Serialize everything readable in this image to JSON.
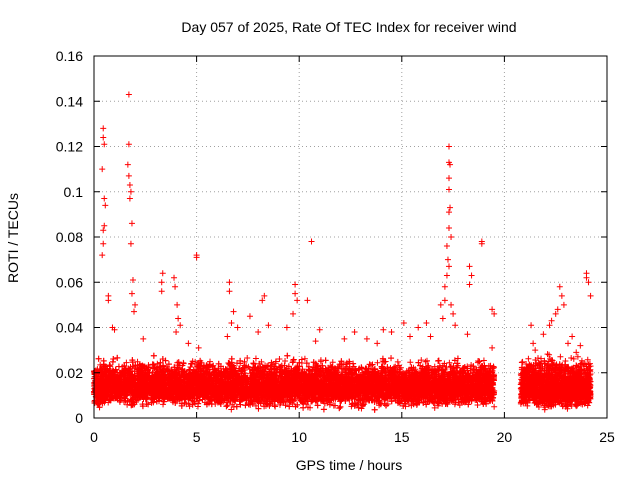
{
  "chart_data": {
    "type": "scatter",
    "title": "Day 057 of 2025, Rate Of TEC Index for receiver wind",
    "xlabel": "GPS time / hours",
    "ylabel": "ROTI / TECUs",
    "xlim": [
      0,
      25
    ],
    "ylim": [
      0,
      0.16
    ],
    "xticks": [
      "0",
      "5",
      "10",
      "15",
      "20",
      "25"
    ],
    "yticks": [
      "0",
      "0.02",
      "0.04",
      "0.06",
      "0.08",
      "0.1",
      "0.12",
      "0.14",
      "0.16"
    ],
    "grid": true,
    "marker": "plus",
    "color": "#ff0000",
    "series": [
      {
        "name": "ROTI",
        "points": [
          [
            0.45,
            0.128
          ],
          [
            0.45,
            0.124
          ],
          [
            0.5,
            0.121
          ],
          [
            0.4,
            0.11
          ],
          [
            0.5,
            0.097
          ],
          [
            0.55,
            0.094
          ],
          [
            0.5,
            0.085
          ],
          [
            0.45,
            0.083
          ],
          [
            0.45,
            0.077
          ],
          [
            0.4,
            0.072
          ],
          [
            0.7,
            0.054
          ],
          [
            0.7,
            0.052
          ],
          [
            0.9,
            0.04
          ],
          [
            1.0,
            0.039
          ],
          [
            1.7,
            0.143
          ],
          [
            1.7,
            0.121
          ],
          [
            1.65,
            0.112
          ],
          [
            1.7,
            0.107
          ],
          [
            1.75,
            0.103
          ],
          [
            1.8,
            0.1
          ],
          [
            1.75,
            0.097
          ],
          [
            1.85,
            0.086
          ],
          [
            1.8,
            0.077
          ],
          [
            1.9,
            0.061
          ],
          [
            1.85,
            0.055
          ],
          [
            2.0,
            0.05
          ],
          [
            1.95,
            0.047
          ],
          [
            2.4,
            0.035
          ],
          [
            3.35,
            0.064
          ],
          [
            3.3,
            0.06
          ],
          [
            3.3,
            0.056
          ],
          [
            3.9,
            0.062
          ],
          [
            3.95,
            0.058
          ],
          [
            4.05,
            0.05
          ],
          [
            4.1,
            0.044
          ],
          [
            4.2,
            0.041
          ],
          [
            4.0,
            0.038
          ],
          [
            4.6,
            0.033
          ],
          [
            5.0,
            0.072
          ],
          [
            5.0,
            0.071
          ],
          [
            5.1,
            0.031
          ],
          [
            6.6,
            0.06
          ],
          [
            6.6,
            0.056
          ],
          [
            6.8,
            0.047
          ],
          [
            6.7,
            0.042
          ],
          [
            7.0,
            0.04
          ],
          [
            6.5,
            0.036
          ],
          [
            7.6,
            0.045
          ],
          [
            8.3,
            0.054
          ],
          [
            8.2,
            0.052
          ],
          [
            8.5,
            0.041
          ],
          [
            8.0,
            0.038
          ],
          [
            9.8,
            0.059
          ],
          [
            9.8,
            0.055
          ],
          [
            9.9,
            0.052
          ],
          [
            9.7,
            0.046
          ],
          [
            9.4,
            0.04
          ],
          [
            10.4,
            0.052
          ],
          [
            10.6,
            0.078
          ],
          [
            11.0,
            0.039
          ],
          [
            10.8,
            0.034
          ],
          [
            12.2,
            0.035
          ],
          [
            12.7,
            0.038
          ],
          [
            13.3,
            0.035
          ],
          [
            13.8,
            0.033
          ],
          [
            14.1,
            0.039
          ],
          [
            14.5,
            0.038
          ],
          [
            15.1,
            0.042
          ],
          [
            15.4,
            0.036
          ],
          [
            15.8,
            0.04
          ],
          [
            16.2,
            0.042
          ],
          [
            16.4,
            0.036
          ],
          [
            16.9,
            0.05
          ],
          [
            17.0,
            0.044
          ],
          [
            17.1,
            0.052
          ],
          [
            17.3,
            0.12
          ],
          [
            17.3,
            0.113
          ],
          [
            17.35,
            0.112
          ],
          [
            17.3,
            0.106
          ],
          [
            17.3,
            0.101
          ],
          [
            17.35,
            0.093
          ],
          [
            17.3,
            0.091
          ],
          [
            17.3,
            0.084
          ],
          [
            17.4,
            0.08
          ],
          [
            17.2,
            0.076
          ],
          [
            17.25,
            0.07
          ],
          [
            17.3,
            0.067
          ],
          [
            17.2,
            0.063
          ],
          [
            17.1,
            0.058
          ],
          [
            17.4,
            0.05
          ],
          [
            17.5,
            0.046
          ],
          [
            17.6,
            0.041
          ],
          [
            18.3,
            0.067
          ],
          [
            18.4,
            0.063
          ],
          [
            18.3,
            0.059
          ],
          [
            18.2,
            0.037
          ],
          [
            18.9,
            0.078
          ],
          [
            18.9,
            0.077
          ],
          [
            19.4,
            0.048
          ],
          [
            19.5,
            0.046
          ],
          [
            19.4,
            0.031
          ],
          [
            19.4,
            0.022
          ],
          [
            19.5,
            0.012
          ],
          [
            19.4,
            0.008
          ],
          [
            19.5,
            0.005
          ],
          [
            19.3,
            0.017
          ],
          [
            21.3,
            0.041
          ],
          [
            21.4,
            0.033
          ],
          [
            21.5,
            0.03
          ],
          [
            21.9,
            0.037
          ],
          [
            22.2,
            0.041
          ],
          [
            22.3,
            0.043
          ],
          [
            22.5,
            0.046
          ],
          [
            22.7,
            0.058
          ],
          [
            22.8,
            0.054
          ],
          [
            22.9,
            0.05
          ],
          [
            22.6,
            0.048
          ],
          [
            23.3,
            0.036
          ],
          [
            23.1,
            0.033
          ],
          [
            23.7,
            0.032
          ],
          [
            23.5,
            0.029
          ],
          [
            24.0,
            0.064
          ],
          [
            24.0,
            0.062
          ],
          [
            24.1,
            0.06
          ],
          [
            24.2,
            0.054
          ]
        ],
        "bands": [
          {
            "x": [
              0.0,
              19.5
            ],
            "low": 0.003,
            "mid": 0.014,
            "high": 0.028
          },
          {
            "x": [
              20.8,
              24.2
            ],
            "low": 0.003,
            "mid": 0.013,
            "high": 0.03
          }
        ]
      }
    ]
  }
}
